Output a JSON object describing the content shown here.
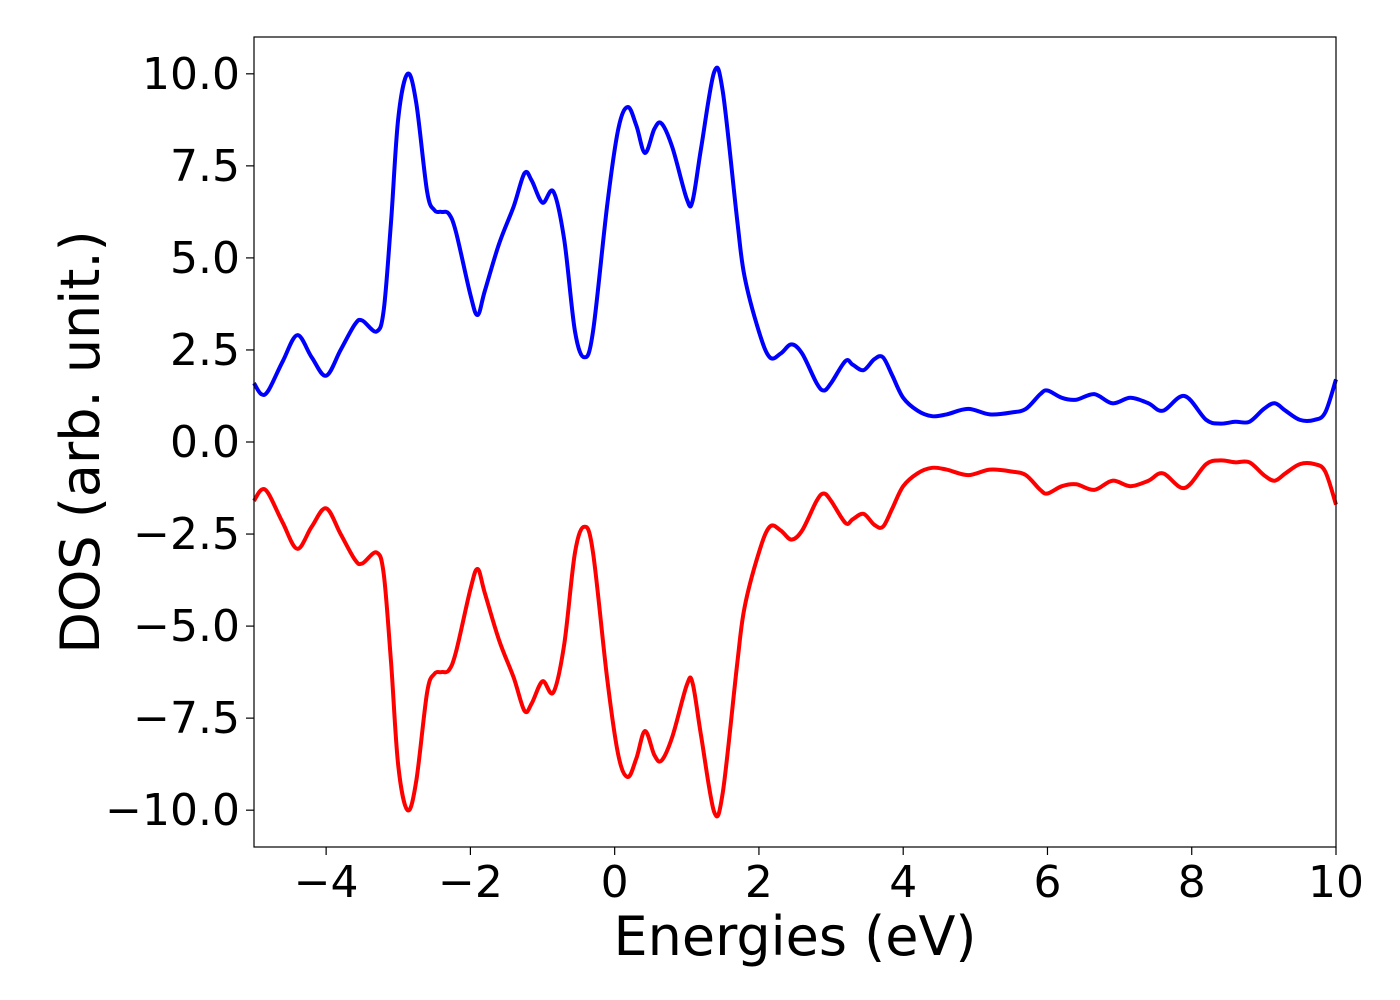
{
  "chart_data": {
    "type": "line",
    "title": "",
    "xlabel": "Energies (eV)",
    "ylabel": "DOS (arb. unit.)",
    "xlim": [
      -5,
      10
    ],
    "ylim": [
      -11,
      11
    ],
    "grid": false,
    "xticks": [
      -4,
      -2,
      0,
      2,
      4,
      6,
      8,
      10
    ],
    "xtick_labels": [
      "−4",
      "−2",
      "0",
      "2",
      "4",
      "6",
      "8",
      "10"
    ],
    "yticks": [
      10,
      7.5,
      5,
      2.5,
      0,
      -2.5,
      -5,
      -7.5,
      -10
    ],
    "ytick_labels": [
      "10.0",
      "7.5",
      "5.0",
      "2.5",
      "0.0",
      "−2.5",
      "−5.0",
      "−7.5",
      "−10.0"
    ],
    "series": [
      {
        "color": "#0000ff",
        "points": [
          [
            -5.0,
            1.6
          ],
          [
            -4.9,
            1.3
          ],
          [
            -4.8,
            1.4
          ],
          [
            -4.6,
            2.2
          ],
          [
            -4.4,
            2.9
          ],
          [
            -4.2,
            2.3
          ],
          [
            -4.0,
            1.8
          ],
          [
            -3.8,
            2.5
          ],
          [
            -3.6,
            3.2
          ],
          [
            -3.5,
            3.3
          ],
          [
            -3.3,
            3.0
          ],
          [
            -3.2,
            3.6
          ],
          [
            -3.1,
            6.0
          ],
          [
            -3.0,
            8.8
          ],
          [
            -2.87,
            10.0
          ],
          [
            -2.75,
            9.2
          ],
          [
            -2.6,
            6.8
          ],
          [
            -2.5,
            6.3
          ],
          [
            -2.4,
            6.25
          ],
          [
            -2.3,
            6.2
          ],
          [
            -2.2,
            5.7
          ],
          [
            -2.0,
            4.0
          ],
          [
            -1.9,
            3.45
          ],
          [
            -1.8,
            4.1
          ],
          [
            -1.6,
            5.4
          ],
          [
            -1.4,
            6.4
          ],
          [
            -1.25,
            7.3
          ],
          [
            -1.15,
            7.1
          ],
          [
            -1.0,
            6.5
          ],
          [
            -0.85,
            6.8
          ],
          [
            -0.7,
            5.5
          ],
          [
            -0.55,
            3.0
          ],
          [
            -0.42,
            2.3
          ],
          [
            -0.3,
            3.0
          ],
          [
            -0.1,
            6.5
          ],
          [
            0.05,
            8.5
          ],
          [
            0.18,
            9.1
          ],
          [
            0.3,
            8.6
          ],
          [
            0.42,
            7.85
          ],
          [
            0.55,
            8.5
          ],
          [
            0.65,
            8.65
          ],
          [
            0.8,
            8.0
          ],
          [
            1.0,
            6.6
          ],
          [
            1.08,
            6.55
          ],
          [
            1.2,
            8.0
          ],
          [
            1.38,
            10.05
          ],
          [
            1.5,
            9.5
          ],
          [
            1.7,
            6.0
          ],
          [
            1.8,
            4.5
          ],
          [
            2.0,
            3.0
          ],
          [
            2.15,
            2.3
          ],
          [
            2.3,
            2.4
          ],
          [
            2.45,
            2.65
          ],
          [
            2.6,
            2.4
          ],
          [
            2.8,
            1.6
          ],
          [
            2.9,
            1.4
          ],
          [
            3.0,
            1.6
          ],
          [
            3.2,
            2.2
          ],
          [
            3.3,
            2.1
          ],
          [
            3.45,
            1.95
          ],
          [
            3.6,
            2.25
          ],
          [
            3.72,
            2.3
          ],
          [
            3.85,
            1.8
          ],
          [
            4.0,
            1.2
          ],
          [
            4.2,
            0.85
          ],
          [
            4.4,
            0.7
          ],
          [
            4.6,
            0.75
          ],
          [
            4.9,
            0.9
          ],
          [
            5.2,
            0.75
          ],
          [
            5.5,
            0.8
          ],
          [
            5.7,
            0.9
          ],
          [
            5.9,
            1.3
          ],
          [
            6.0,
            1.4
          ],
          [
            6.2,
            1.2
          ],
          [
            6.4,
            1.15
          ],
          [
            6.65,
            1.3
          ],
          [
            6.9,
            1.05
          ],
          [
            7.15,
            1.2
          ],
          [
            7.4,
            1.05
          ],
          [
            7.6,
            0.85
          ],
          [
            7.9,
            1.25
          ],
          [
            8.2,
            0.6
          ],
          [
            8.4,
            0.5
          ],
          [
            8.6,
            0.55
          ],
          [
            8.8,
            0.55
          ],
          [
            9.0,
            0.9
          ],
          [
            9.15,
            1.05
          ],
          [
            9.3,
            0.85
          ],
          [
            9.5,
            0.6
          ],
          [
            9.7,
            0.6
          ],
          [
            9.85,
            0.8
          ],
          [
            10.0,
            1.7
          ]
        ]
      },
      {
        "color": "#ff0000",
        "points": [
          [
            -5.0,
            -1.6
          ],
          [
            -4.9,
            -1.3
          ],
          [
            -4.8,
            -1.4
          ],
          [
            -4.6,
            -2.2
          ],
          [
            -4.4,
            -2.9
          ],
          [
            -4.2,
            -2.3
          ],
          [
            -4.0,
            -1.8
          ],
          [
            -3.8,
            -2.5
          ],
          [
            -3.6,
            -3.2
          ],
          [
            -3.5,
            -3.3
          ],
          [
            -3.3,
            -3.0
          ],
          [
            -3.2,
            -3.6
          ],
          [
            -3.1,
            -6.0
          ],
          [
            -3.0,
            -8.8
          ],
          [
            -2.87,
            -10.0
          ],
          [
            -2.75,
            -9.2
          ],
          [
            -2.6,
            -6.8
          ],
          [
            -2.5,
            -6.3
          ],
          [
            -2.4,
            -6.25
          ],
          [
            -2.3,
            -6.2
          ],
          [
            -2.2,
            -5.7
          ],
          [
            -2.0,
            -4.0
          ],
          [
            -1.9,
            -3.45
          ],
          [
            -1.8,
            -4.1
          ],
          [
            -1.6,
            -5.4
          ],
          [
            -1.4,
            -6.4
          ],
          [
            -1.25,
            -7.3
          ],
          [
            -1.15,
            -7.1
          ],
          [
            -1.0,
            -6.5
          ],
          [
            -0.85,
            -6.8
          ],
          [
            -0.7,
            -5.5
          ],
          [
            -0.55,
            -3.0
          ],
          [
            -0.42,
            -2.3
          ],
          [
            -0.3,
            -3.0
          ],
          [
            -0.1,
            -6.5
          ],
          [
            0.05,
            -8.5
          ],
          [
            0.18,
            -9.1
          ],
          [
            0.3,
            -8.6
          ],
          [
            0.42,
            -7.85
          ],
          [
            0.55,
            -8.5
          ],
          [
            0.65,
            -8.65
          ],
          [
            0.8,
            -8.0
          ],
          [
            1.0,
            -6.6
          ],
          [
            1.08,
            -6.55
          ],
          [
            1.2,
            -8.0
          ],
          [
            1.38,
            -10.05
          ],
          [
            1.5,
            -9.5
          ],
          [
            1.7,
            -6.0
          ],
          [
            1.8,
            -4.5
          ],
          [
            2.0,
            -3.0
          ],
          [
            2.15,
            -2.3
          ],
          [
            2.3,
            -2.4
          ],
          [
            2.45,
            -2.65
          ],
          [
            2.6,
            -2.4
          ],
          [
            2.8,
            -1.6
          ],
          [
            2.9,
            -1.4
          ],
          [
            3.0,
            -1.6
          ],
          [
            3.2,
            -2.2
          ],
          [
            3.3,
            -2.1
          ],
          [
            3.45,
            -1.95
          ],
          [
            3.6,
            -2.25
          ],
          [
            3.72,
            -2.3
          ],
          [
            3.85,
            -1.8
          ],
          [
            4.0,
            -1.2
          ],
          [
            4.2,
            -0.85
          ],
          [
            4.4,
            -0.7
          ],
          [
            4.6,
            -0.75
          ],
          [
            4.9,
            -0.9
          ],
          [
            5.2,
            -0.75
          ],
          [
            5.5,
            -0.8
          ],
          [
            5.7,
            -0.9
          ],
          [
            5.9,
            -1.3
          ],
          [
            6.0,
            -1.4
          ],
          [
            6.2,
            -1.2
          ],
          [
            6.4,
            -1.15
          ],
          [
            6.65,
            -1.3
          ],
          [
            6.9,
            -1.05
          ],
          [
            7.15,
            -1.2
          ],
          [
            7.4,
            -1.05
          ],
          [
            7.6,
            -0.85
          ],
          [
            7.9,
            -1.25
          ],
          [
            8.2,
            -0.6
          ],
          [
            8.4,
            -0.5
          ],
          [
            8.6,
            -0.55
          ],
          [
            8.8,
            -0.55
          ],
          [
            9.0,
            -0.9
          ],
          [
            9.15,
            -1.05
          ],
          [
            9.3,
            -0.85
          ],
          [
            9.5,
            -0.6
          ],
          [
            9.7,
            -0.6
          ],
          [
            9.85,
            -0.8
          ],
          [
            10.0,
            -1.7
          ]
        ]
      }
    ]
  }
}
